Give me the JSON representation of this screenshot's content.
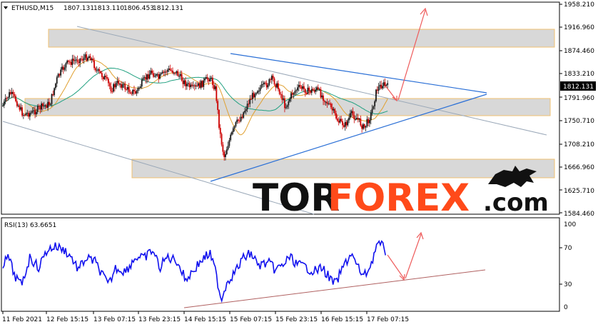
{
  "header": {
    "symbol": "ETHUSD,M15",
    "open": "1807.131",
    "high": "1813.110",
    "low": "1806.453",
    "close": "1812.131"
  },
  "price_axis": {
    "ticks": [
      "1958.210",
      "1916.960",
      "1874.460",
      "1833.210",
      "1791.960",
      "1750.710",
      "1708.210",
      "1666.960",
      "1625.710",
      "1584.460"
    ],
    "current_price_label": "1812.131"
  },
  "rsi_panel": {
    "label": "RSI(13) 63.6651",
    "ticks": [
      "100",
      "70",
      "30",
      "0"
    ]
  },
  "time_axis": {
    "labels": [
      "11 Feb 2021",
      "12 Feb 15:15",
      "13 Feb 07:15",
      "13 Feb 23:15",
      "14 Feb 15:15",
      "15 Feb 07:15",
      "15 Feb 23:15",
      "16 Feb 15:15",
      "17 Feb 07:15"
    ]
  },
  "watermark": {
    "part1": "TOR",
    "part2": "FOREX",
    "part3": ".com"
  },
  "colors": {
    "bull": "#1a1a1a",
    "bear": "#cc0000",
    "ma_fast": "#e0a030",
    "ma_slow": "#20a080",
    "trendline": "#2a6fd6",
    "channel": "#9aa8b8",
    "zone_fill": "#d8d8d8",
    "zone_border": "#f0c070",
    "arrow": "#ee5a5a",
    "rsi_line": "#1010ee",
    "rsi_support": "#b06060",
    "watermark_dark": "#111111",
    "watermark_accent": "#ff4a1a"
  }
}
